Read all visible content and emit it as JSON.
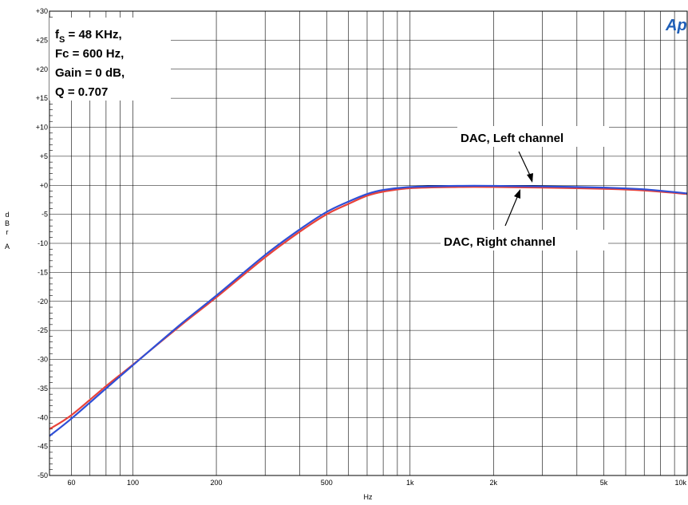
{
  "chart_data": {
    "type": "line",
    "title": "",
    "xlabel": "Hz",
    "ylabel": "dBrA",
    "ylabel_letters": [
      "d",
      "B",
      "r",
      "A"
    ],
    "xscale": "log",
    "xlim": [
      50,
      10000
    ],
    "ylim": [
      -50,
      30
    ],
    "grid": true,
    "x_ticks": [
      60,
      100,
      200,
      500,
      1000,
      2000,
      5000,
      10000
    ],
    "x_tick_labels": [
      "60",
      "100",
      "200",
      "500",
      "1k",
      "2k",
      "5k",
      "10k"
    ],
    "y_ticks": [
      30,
      25,
      20,
      15,
      10,
      5,
      0,
      -5,
      -10,
      -15,
      -20,
      -25,
      -30,
      -35,
      -40,
      -45,
      -50
    ],
    "y_tick_labels": [
      "+30",
      "+25",
      "+20",
      "+15",
      "+10",
      "+5",
      "+0",
      "-5",
      "-10",
      "-15",
      "-20",
      "-25",
      "-30",
      "-35",
      "-40",
      "-45",
      "-50"
    ],
    "series": [
      {
        "name": "DAC, Right channel",
        "color": "#e8423a",
        "x": [
          50,
          60,
          80,
          100,
          150,
          200,
          300,
          400,
          500,
          600,
          700,
          800,
          1000,
          1500,
          2000,
          3000,
          5000,
          7000,
          10000
        ],
        "y": [
          -42.0,
          -39.6,
          -34.6,
          -30.9,
          -24.0,
          -19.3,
          -12.4,
          -8.0,
          -5.0,
          -3.2,
          -1.8,
          -1.1,
          -0.5,
          -0.3,
          -0.3,
          -0.4,
          -0.6,
          -0.9,
          -1.5
        ]
      },
      {
        "name": "DAC, Left channel",
        "color": "#2f4fd6",
        "x": [
          50,
          60,
          80,
          100,
          150,
          200,
          300,
          400,
          500,
          600,
          700,
          800,
          1000,
          1500,
          2000,
          3000,
          5000,
          7000,
          10000
        ],
        "y": [
          -43.2,
          -40.2,
          -35.0,
          -31.0,
          -23.8,
          -19.0,
          -12.0,
          -7.6,
          -4.6,
          -2.8,
          -1.5,
          -0.8,
          -0.3,
          -0.1,
          -0.1,
          -0.2,
          -0.4,
          -0.7,
          -1.4
        ]
      }
    ],
    "annotations": [
      {
        "id": "params",
        "lines": [
          "f",
          "Fc = 600 Hz,",
          "Gain = 0 dB,",
          "Q = 0.707"
        ],
        "first_line_sub": "S",
        "first_line_rest": " = 48 KHz,"
      },
      {
        "id": "left-label",
        "text": "DAC, Left channel"
      },
      {
        "id": "right-label",
        "text": "DAC, Right channel"
      }
    ],
    "logo": "Ap"
  }
}
